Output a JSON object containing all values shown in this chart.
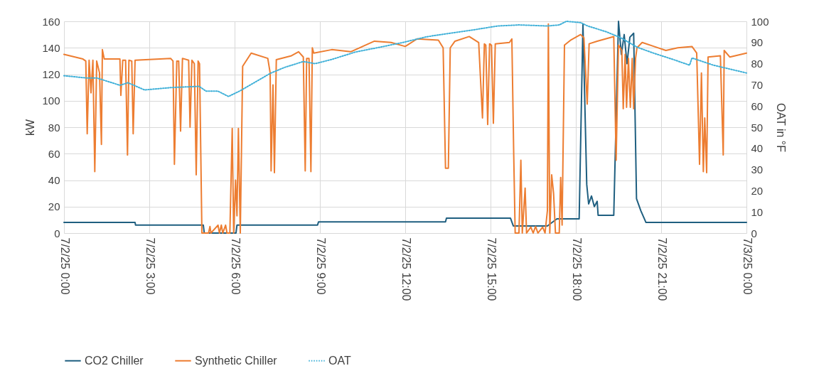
{
  "chart_data": {
    "type": "line",
    "ylabel": "kW",
    "y2label": "OAT in °F",
    "xlim": [
      "--07-02T00:00",
      "--07-03T00:00"
    ],
    "ylim": [
      0,
      160
    ],
    "y2lim": [
      0,
      100
    ],
    "xticks": [
      {
        "value": "--07-02T00:00",
        "label": "7/2/25 0:00"
      },
      {
        "value": "--07-02T03:00",
        "label": "7/2/25 3:00"
      },
      {
        "value": "--07-02T06:00",
        "label": "7/2/25 6:00"
      },
      {
        "value": "--07-02T09:00",
        "label": "7/2/25 9:00"
      },
      {
        "value": "--07-02T12:00",
        "label": "7/2/25 12:00"
      },
      {
        "value": "--07-02T15:00",
        "label": "7/2/25 15:00"
      },
      {
        "value": "--07-02T18:00",
        "label": "7/2/25 18:00"
      },
      {
        "value": "--07-02T21:00",
        "label": "7/2/25 21:00"
      },
      {
        "value": "--07-03T00:00",
        "label": "7/3/25 0:00"
      }
    ],
    "yticks": [
      0,
      20,
      40,
      60,
      80,
      100,
      120,
      140,
      160
    ],
    "y2ticks": [
      0,
      10,
      20,
      30,
      40,
      50,
      60,
      70,
      80,
      90,
      100
    ],
    "grid": true,
    "legend": "bottom",
    "series": [
      {
        "name": "CO2 Chiller",
        "color": "#1f5f80",
        "line_style": "solid",
        "x": [
          "--07-02T00:00",
          "--07-02T02:30",
          "--07-02T02:31",
          "--07-02T04:54",
          "--07-02T04:56",
          "--07-02T06:03",
          "--07-02T06:05",
          "--07-02T08:55",
          "--07-02T08:57",
          "--07-02T13:25",
          "--07-02T13:27",
          "--07-02T15:42",
          "--07-02T15:48",
          "--07-02T17:00",
          "--07-02T17:20",
          "--07-02T18:07",
          "--07-02T18:15",
          "--07-02T18:23",
          "--07-02T18:27",
          "--07-02T18:33",
          "--07-02T18:39",
          "--07-02T18:45",
          "--07-02T18:47",
          "--07-02T19:20",
          "--07-02T19:30",
          "--07-02T19:36",
          "--07-02T19:42",
          "--07-02T19:48",
          "--07-02T19:54",
          "--07-02T20:02",
          "--07-02T20:08",
          "--07-02T20:17",
          "--07-02T20:28",
          "--07-03T00:00"
        ],
        "values": [
          8,
          8,
          6,
          6,
          0,
          0,
          6,
          6,
          8.4,
          8.4,
          11.3,
          11.3,
          5.4,
          5.4,
          10.7,
          10.7,
          158,
          36.7,
          22,
          28,
          20,
          24,
          13.4,
          13.4,
          160,
          135,
          150,
          128,
          148,
          151,
          26,
          17,
          8,
          8
        ]
      },
      {
        "name": "Synthetic Chiller",
        "color": "#ed7d31",
        "line_style": "solid",
        "x": [
          "--07-02T00:00",
          "--07-02T00:40",
          "--07-02T00:46",
          "--07-02T00:49",
          "--07-02T00:53",
          "--07-02T00:57",
          "--07-02T01:01",
          "--07-02T01:05",
          "--07-02T01:09",
          "--07-02T01:15",
          "--07-02T01:19",
          "--07-02T01:21",
          "--07-02T01:25",
          "--07-02T01:58",
          "--07-02T02:00",
          "--07-02T02:04",
          "--07-02T02:10",
          "--07-02T02:14",
          "--07-02T02:17",
          "--07-02T02:23",
          "--07-02T02:26",
          "--07-02T02:30",
          "--07-02T03:45",
          "--07-02T03:50",
          "--07-02T03:53",
          "--07-02T03:58",
          "--07-02T04:02",
          "--07-02T04:06",
          "--07-02T04:10",
          "--07-02T04:23",
          "--07-02T04:26",
          "--07-02T04:30",
          "--07-02T04:35",
          "--07-02T04:39",
          "--07-02T04:43",
          "--07-02T04:46",
          "--07-02T04:51",
          "--07-02T05:05",
          "--07-02T05:08",
          "--07-02T05:10",
          "--07-02T05:25",
          "--07-02T05:28",
          "--07-02T05:32",
          "--07-02T05:35",
          "--07-02T05:41",
          "--07-02T05:44",
          "--07-02T05:50",
          "--07-02T05:55",
          "--07-02T05:58",
          "--07-02T06:02",
          "--07-02T06:05",
          "--07-02T06:08",
          "--07-02T06:12",
          "--07-02T06:17",
          "--07-02T06:35",
          "--07-02T07:10",
          "--07-02T07:15",
          "--07-02T07:17",
          "--07-02T07:21",
          "--07-02T07:24",
          "--07-02T07:28",
          "--07-02T08:00",
          "--07-02T08:15",
          "--07-02T08:25",
          "--07-02T08:29",
          "--07-02T08:32",
          "--07-02T08:37",
          "--07-02T08:41",
          "--07-02T08:44",
          "--07-02T08:47",
          "--07-02T09:25",
          "--07-02T10:05",
          "--07-02T10:30",
          "--07-02T10:55",
          "--07-02T11:30",
          "--07-02T12:00",
          "--07-02T12:25",
          "--07-02T13:10",
          "--07-02T13:20",
          "--07-02T13:25",
          "--07-02T13:31",
          "--07-02T13:35",
          "--07-02T13:45",
          "--07-02T14:15",
          "--07-02T14:35",
          "--07-02T14:43",
          "--07-02T14:47",
          "--07-02T14:50",
          "--07-02T14:54",
          "--07-02T14:58",
          "--07-02T15:02",
          "--07-02T15:06",
          "--07-02T15:10",
          "--07-02T15:40",
          "--07-02T15:45",
          "--07-02T15:49",
          "--07-02T15:52",
          "--07-02T16:00",
          "--07-02T16:04",
          "--07-02T16:07",
          "--07-02T16:13",
          "--07-02T16:16",
          "--07-02T16:25",
          "--07-02T16:30",
          "--07-02T16:35",
          "--07-02T16:40",
          "--07-02T16:50",
          "--07-02T16:55",
          "--07-02T17:00",
          "--07-02T17:02",
          "--07-02T17:05",
          "--07-02T17:09",
          "--07-02T17:13",
          "--07-02T17:17",
          "--07-02T17:25",
          "--07-02T17:28",
          "--07-02T17:31",
          "--07-02T17:36",
          "--07-02T17:50",
          "--07-02T18:10",
          "--07-02T18:17",
          "--07-02T18:24",
          "--07-02T18:28",
          "--07-02T18:45",
          "--07-02T19:20",
          "--07-02T19:25",
          "--07-02T19:30",
          "--07-02T19:37",
          "--07-02T19:40",
          "--07-02T19:44",
          "--07-02T19:47",
          "--07-02T19:51",
          "--07-02T19:55",
          "--07-02T19:59",
          "--07-02T20:02",
          "--07-02T20:06",
          "--07-02T20:09",
          "--07-02T20:20",
          "--07-02T20:45",
          "--07-02T21:10",
          "--07-02T21:35",
          "--07-02T22:05",
          "--07-02T22:15",
          "--07-02T22:21",
          "--07-02T22:25",
          "--07-02T22:29",
          "--07-02T22:32",
          "--07-02T22:36",
          "--07-02T22:39",
          "--07-02T23:05",
          "--07-02T23:11",
          "--07-02T23:13",
          "--07-02T23:25",
          "--07-03T00:00"
        ],
        "values": [
          135,
          131.5,
          130,
          75,
          130.6,
          106,
          130.6,
          46.5,
          130,
          121,
          67,
          138.6,
          131.5,
          131.5,
          104,
          130.6,
          130.6,
          59,
          130.6,
          130,
          75,
          130.6,
          132,
          130,
          52,
          130,
          130,
          77,
          132,
          130.6,
          80,
          130.6,
          128,
          44,
          130,
          128,
          0,
          0,
          5,
          0,
          6,
          0,
          6,
          0,
          6,
          0,
          0,
          79,
          0,
          40,
          13,
          79,
          0,
          126,
          136,
          132,
          121,
          47,
          112,
          45.6,
          131,
          134,
          137,
          133,
          47,
          132,
          132,
          46.5,
          140,
          136,
          138.6,
          137,
          141,
          145,
          144,
          141,
          146.7,
          145.8,
          140,
          49,
          49,
          140,
          145,
          148.5,
          144,
          87,
          143,
          142,
          82,
          143,
          142,
          83,
          143,
          144,
          146.7,
          58,
          0,
          0,
          55,
          0,
          34,
          0,
          4.5,
          0,
          5,
          0,
          4.5,
          0,
          17,
          158,
          0,
          44,
          30,
          0,
          0,
          42,
          6,
          142,
          146,
          150,
          147.5,
          97.5,
          143,
          145,
          148.5,
          55,
          142,
          138,
          94,
          135,
          95,
          132,
          95,
          132,
          94,
          132,
          140,
          144,
          141,
          138,
          140,
          141,
          136,
          52,
          121,
          46.5,
          87,
          45.6,
          133,
          134,
          59,
          138,
          133,
          136
        ]
      },
      {
        "name": "OAT",
        "color": "#3fb0d8",
        "line_style": "dotted",
        "axis": "y2",
        "x": [
          "--07-02T00:00",
          "--07-02T00:50",
          "--07-02T01:10",
          "--07-02T01:58",
          "--07-02T02:15",
          "--07-02T02:50",
          "--07-02T03:45",
          "--07-02T04:45",
          "--07-02T05:00",
          "--07-02T05:25",
          "--07-02T05:47",
          "--07-02T06:10",
          "--07-02T07:15",
          "--07-02T07:45",
          "--07-02T08:25",
          "--07-02T08:50",
          "--07-02T09:25",
          "--07-02T10:15",
          "--07-02T11:05",
          "--07-02T11:55",
          "--07-02T12:45",
          "--07-02T13:35",
          "--07-02T14:25",
          "--07-02T15:15",
          "--07-02T16:00",
          "--07-02T17:00",
          "--07-02T17:25",
          "--07-02T17:40",
          "--07-02T18:10",
          "--07-02T18:25",
          "--07-02T19:05",
          "--07-02T19:35",
          "--07-02T20:10",
          "--07-02T20:45",
          "--07-02T21:25",
          "--07-02T22:00",
          "--07-02T22:05",
          "--07-02T22:50",
          "--07-03T00:00"
        ],
        "values": [
          74.3,
          73.2,
          73.2,
          69.8,
          71,
          67.6,
          68.7,
          69.3,
          67,
          67,
          64.5,
          67,
          75.4,
          78.2,
          81,
          80,
          82,
          85.5,
          87.7,
          90,
          92.7,
          94.4,
          96,
          97.8,
          98.3,
          97.8,
          98.3,
          100,
          99.4,
          97.8,
          95,
          92.2,
          87.7,
          84.9,
          82,
          79.3,
          82.7,
          79.3,
          75.6
        ]
      }
    ]
  }
}
